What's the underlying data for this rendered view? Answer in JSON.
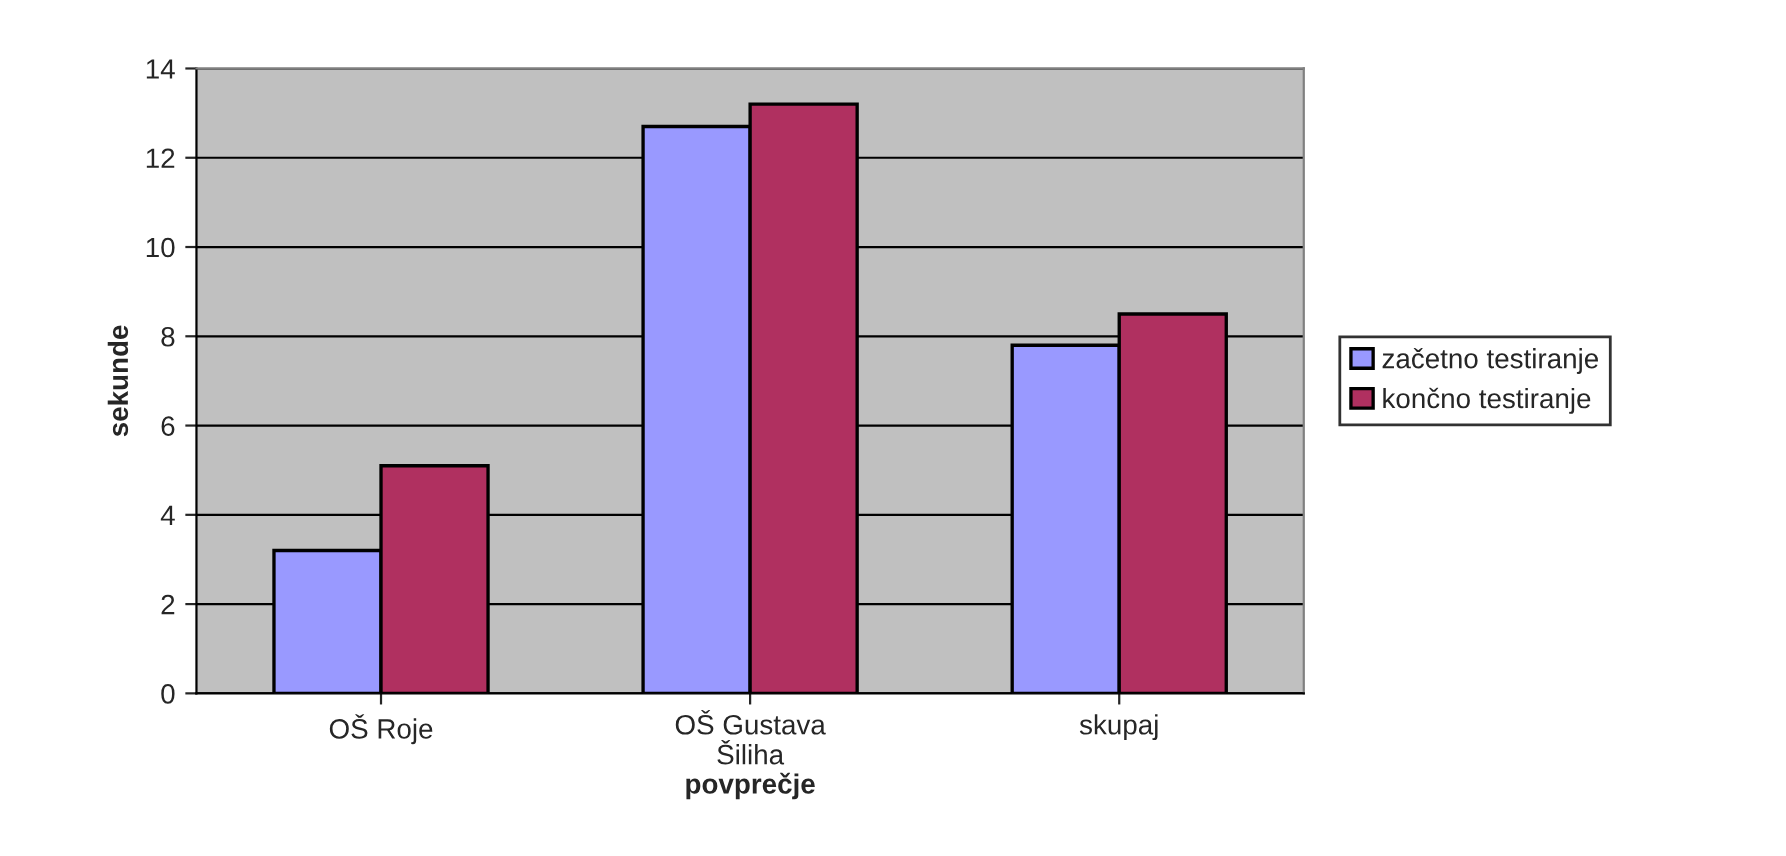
{
  "chart_data": {
    "type": "bar",
    "xlabel": "povprečje",
    "ylabel": "sekunde",
    "categories": [
      "OŠ Roje",
      "OŠ Gustava\nŠiliha",
      "skupaj"
    ],
    "series": [
      {
        "name": "začetno testiranje",
        "color": "#9999ff",
        "values": [
          3.2,
          12.7,
          7.8
        ]
      },
      {
        "name": "končno testiranje",
        "color": "#b03060",
        "values": [
          5.1,
          13.2,
          8.5
        ]
      }
    ],
    "ylim": [
      0,
      14
    ],
    "yticks": [
      0,
      2,
      4,
      6,
      8,
      10,
      12,
      14
    ],
    "grid": "y",
    "legend": "right"
  }
}
